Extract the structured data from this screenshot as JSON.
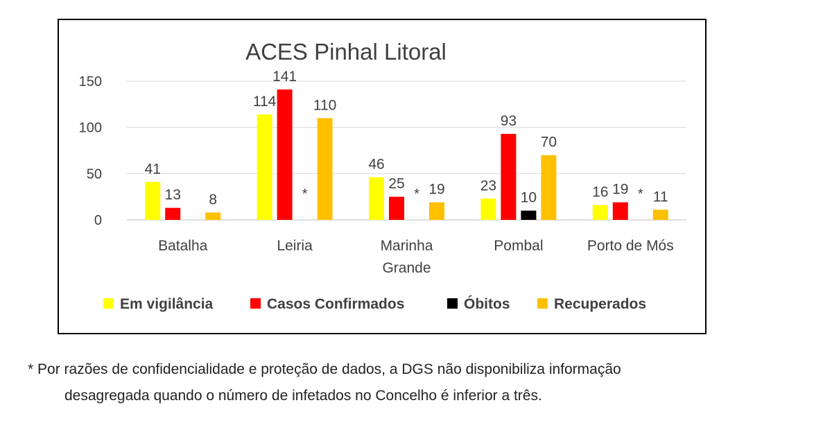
{
  "chart_data": {
    "type": "bar",
    "title": "ACES Pinhal Litoral",
    "categories": [
      "Batalha",
      "Leiria",
      "Marinha Grande",
      "Pombal",
      "Porto de Mós"
    ],
    "series": [
      {
        "name": "Em vigilância",
        "color": "#FFFF00",
        "values": [
          41,
          114,
          46,
          23,
          16
        ]
      },
      {
        "name": "Casos Confirmados",
        "color": "#FF0000",
        "values": [
          13,
          141,
          25,
          93,
          19
        ]
      },
      {
        "name": "Óbitos",
        "color": "#000000",
        "values": [
          null,
          null,
          null,
          10,
          null
        ]
      },
      {
        "name": "Recuperados",
        "color": "#FFC000",
        "values": [
          8,
          110,
          19,
          70,
          11
        ]
      }
    ],
    "value_labels": [
      [
        "41",
        "13",
        "",
        "8"
      ],
      [
        "114",
        "141",
        "*",
        "110"
      ],
      [
        "46",
        "25",
        "*",
        "19"
      ],
      [
        "23",
        "93",
        "10",
        "70"
      ],
      [
        "16",
        "19",
        "*",
        "11"
      ]
    ],
    "ylim": [
      0,
      150
    ],
    "yticks": [
      0,
      50,
      100,
      150
    ],
    "grid": true,
    "legend_position": "bottom"
  },
  "footnote": {
    "line1": "* Por razões de confidencialidade e proteção de dados, a DGS não disponibiliza informação",
    "line2": "desagregada quando o número de infetados no Concelho é inferior a três."
  }
}
